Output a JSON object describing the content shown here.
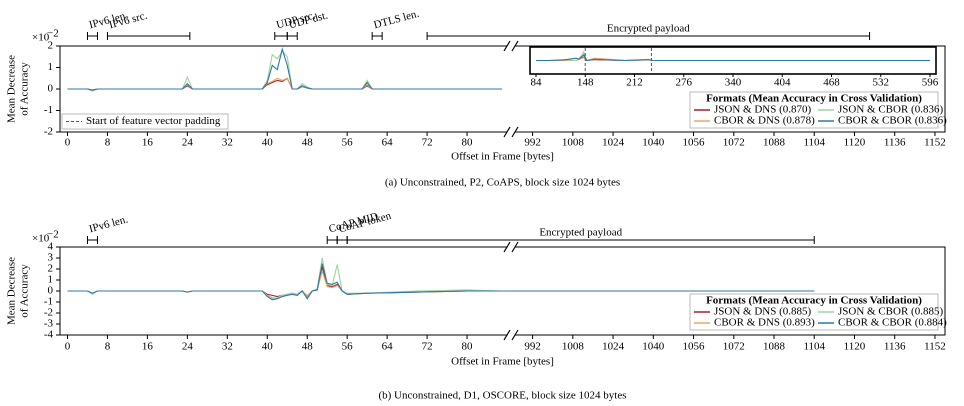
{
  "chart_data": [
    {
      "type": "line",
      "caption": "(a) Unconstrained, P2, CoAPS, block size 1024 bytes",
      "y_label_lines": [
        "Mean Decrease",
        "of Accuracy"
      ],
      "y_multiplier": "×10",
      "y_multiplier_exponent": "−2",
      "x_label": "Offset in Frame [bytes]",
      "ylim": [
        -2,
        2
      ],
      "yticks": [
        -2,
        -1,
        0,
        1,
        2
      ],
      "x_segments": [
        {
          "xlim": [
            -1.5,
            88
          ],
          "xticks": [
            0,
            8,
            16,
            24,
            32,
            40,
            48,
            56,
            64,
            72,
            80
          ]
        },
        {
          "xlim": [
            985,
            1156
          ],
          "xticks": [
            992,
            1008,
            1024,
            1040,
            1056,
            1072,
            1088,
            1104,
            1120,
            1136,
            1152
          ]
        }
      ],
      "x": [
        0,
        4,
        5,
        6,
        7,
        22,
        23,
        24,
        25,
        39,
        40,
        41,
        42,
        43,
        44,
        45,
        46,
        47,
        48,
        49,
        59,
        60,
        61,
        62,
        87
      ],
      "series": [
        {
          "name": "JSON & DNS (0.870)",
          "color": "#a3202e",
          "values": [
            0,
            0,
            -0.05,
            0,
            0,
            0,
            0,
            0.15,
            0,
            0,
            0.2,
            0.3,
            0.4,
            0.35,
            0.5,
            0,
            0,
            0.1,
            0.05,
            0,
            0,
            0.15,
            0,
            0,
            0
          ]
        },
        {
          "name": "CBOR & DNS (0.878)",
          "color": "#f2a35a",
          "values": [
            0,
            0,
            -0.05,
            0,
            0,
            0,
            0,
            0.2,
            0,
            0,
            0.25,
            0.35,
            0.5,
            0.4,
            0.5,
            0,
            0,
            0.1,
            0.05,
            0,
            0,
            0.2,
            0,
            0,
            0
          ]
        },
        {
          "name": "JSON & CBOR (0.836)",
          "color": "#9fd49b",
          "values": [
            0,
            0,
            -0.1,
            0,
            0,
            0,
            0,
            0.55,
            0,
            0,
            0.4,
            1.6,
            1.4,
            1.75,
            1.5,
            0,
            0,
            0.25,
            0.1,
            0,
            0,
            0.4,
            0,
            0,
            0
          ]
        },
        {
          "name": "CBOR & CBOR (0.836)",
          "color": "#2a78b0",
          "values": [
            0,
            0,
            -0.05,
            0,
            0,
            0,
            0,
            0.25,
            0,
            0,
            0.3,
            1.1,
            0.9,
            1.85,
            1.1,
            0,
            0,
            0.15,
            0.05,
            0,
            0,
            0.3,
            0,
            0,
            0
          ]
        }
      ],
      "legend_title": "Formats (Mean Accuracy in Cross Validation)",
      "padding_label": "Start of feature vector padding",
      "annotations": [
        {
          "text": "IPv6 len.",
          "span": [
            4,
            6
          ]
        },
        {
          "text": "IPv6 src.",
          "span": [
            8,
            24.5
          ]
        },
        {
          "text": "UDP src.",
          "span": [
            41.5,
            44
          ]
        },
        {
          "text": "UDP dst.",
          "span": [
            44,
            46
          ]
        },
        {
          "text": "DTLS len.",
          "span": [
            61,
            63
          ]
        },
        {
          "text": "Encrypted payload",
          "span": [
            72,
            1126
          ]
        }
      ],
      "inset": {
        "xlim": [
          84,
          596
        ],
        "xticks": [
          84,
          148,
          212,
          276,
          340,
          404,
          468,
          532,
          596
        ],
        "ylim": [
          -0.4,
          0.4
        ],
        "x": [
          84,
          100,
          120,
          136,
          140,
          146,
          150,
          160,
          200,
          230,
          236,
          300,
          400,
          596
        ],
        "series": [
          {
            "values": [
              0,
              0,
              0,
              0,
              0.05,
              0.12,
              0,
              0.03,
              0,
              0.03,
              0,
              0,
              0,
              0
            ]
          },
          {
            "values": [
              0,
              0,
              0,
              0,
              0.04,
              0.1,
              0,
              0.08,
              0,
              0.02,
              0,
              0,
              0,
              0
            ]
          },
          {
            "values": [
              0,
              0,
              0.03,
              0,
              0.06,
              0.3,
              0,
              0.05,
              0,
              0.04,
              0,
              0,
              0,
              0
            ]
          },
          {
            "values": [
              0,
              0,
              0.02,
              0.08,
              0.05,
              0.2,
              0,
              0.04,
              0,
              0.03,
              0,
              0,
              0,
              0
            ]
          }
        ],
        "padding_x": [
          148,
          234
        ]
      }
    },
    {
      "type": "line",
      "caption": "(b) Unconstrained, D1, OSCORE, block size 1024 bytes",
      "y_label_lines": [
        "Mean Decrease",
        "of Accuracy"
      ],
      "y_multiplier": "×10",
      "y_multiplier_exponent": "−2",
      "x_label": "Offset in Frame [bytes]",
      "ylim": [
        -4,
        4
      ],
      "yticks": [
        -4,
        -3,
        -2,
        -1,
        0,
        1,
        2,
        3,
        4
      ],
      "x_segments": [
        {
          "xlim": [
            -1.5,
            88
          ],
          "xticks": [
            0,
            8,
            16,
            24,
            32,
            40,
            48,
            56,
            64,
            72,
            80
          ]
        },
        {
          "xlim": [
            985,
            1156
          ],
          "xticks": [
            992,
            1008,
            1024,
            1040,
            1056,
            1072,
            1088,
            1104,
            1120,
            1136,
            1152
          ]
        }
      ],
      "x": [
        0,
        4,
        5,
        6,
        7,
        23,
        24,
        25,
        39,
        40,
        41,
        42,
        43,
        44,
        45,
        46,
        47,
        48,
        49,
        50,
        51,
        52,
        53,
        54,
        55,
        56,
        60,
        70,
        80,
        87,
        985,
        1000,
        1050,
        1104
      ],
      "series": [
        {
          "name": "JSON & DNS (0.885)",
          "color": "#a3202e",
          "values": [
            0,
            0,
            -0.2,
            0,
            0,
            0,
            -0.1,
            0,
            0,
            -0.3,
            -0.4,
            -0.5,
            -0.4,
            -0.3,
            -0.2,
            -0.3,
            0,
            -0.5,
            0,
            0.1,
            2.2,
            0.5,
            0.4,
            0.6,
            0,
            -0.3,
            -0.2,
            -0.1,
            0,
            0,
            0,
            0,
            0,
            0
          ]
        },
        {
          "name": "CBOR & DNS (0.893)",
          "color": "#f2a35a",
          "values": [
            0,
            0,
            -0.2,
            0,
            0,
            0,
            -0.1,
            0,
            0,
            -0.4,
            -0.6,
            -0.7,
            -0.5,
            -0.4,
            -0.2,
            -0.4,
            0,
            -0.4,
            0,
            0.1,
            1.8,
            0.4,
            0.3,
            0.5,
            0,
            -0.3,
            -0.2,
            -0.1,
            0,
            0,
            0,
            0,
            0,
            0
          ]
        },
        {
          "name": "JSON & CBOR (0.885)",
          "color": "#9fd49b",
          "values": [
            0,
            0,
            -0.3,
            0,
            0,
            0,
            -0.1,
            0,
            0,
            -0.4,
            -0.7,
            -0.6,
            -0.4,
            -0.3,
            -0.2,
            -0.3,
            0,
            -0.6,
            0,
            0.2,
            3.0,
            0.6,
            0.5,
            2.4,
            0,
            -0.2,
            -0.2,
            0,
            0.1,
            0,
            0,
            0,
            0,
            0
          ]
        },
        {
          "name": "CBOR & CBOR (0.884)",
          "color": "#2a78b0",
          "values": [
            0,
            0,
            -0.2,
            0,
            0,
            0,
            -0.1,
            0,
            0,
            -0.5,
            -0.8,
            -0.7,
            -0.5,
            -0.4,
            -0.3,
            -0.4,
            0,
            -0.7,
            0,
            0.1,
            2.5,
            0.7,
            0.6,
            0.8,
            0,
            -0.3,
            -0.2,
            -0.1,
            0,
            0,
            0,
            0,
            0,
            0
          ]
        }
      ],
      "legend_title": "Formats (Mean Accuracy in Cross Validation)",
      "annotations": [
        {
          "text": "IPv6 len.",
          "span": [
            4,
            6
          ]
        },
        {
          "text": "CoAP MID",
          "span": [
            52,
            54
          ]
        },
        {
          "text": "CoAP token",
          "span": [
            54,
            56
          ]
        },
        {
          "text": "Encrypted payload",
          "span": [
            56,
            1104
          ]
        }
      ]
    }
  ]
}
